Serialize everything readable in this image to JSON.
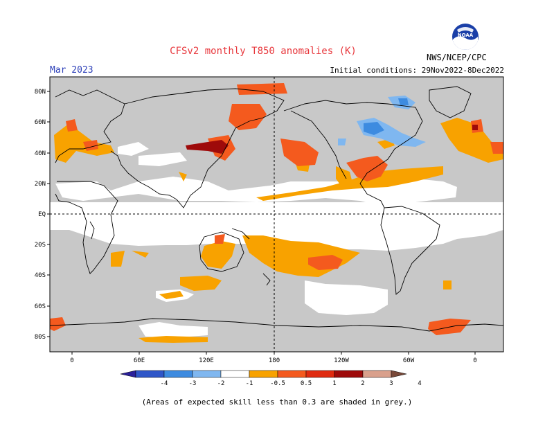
{
  "header": {
    "title": "CFSv2 monthly T850 anomalies (K)",
    "period": "Mar 2023",
    "initial_conditions": "Initial conditions: 29Nov2022-8Dec2022",
    "agency": "NWS/NCEP/CPC",
    "logo_text": "NOAA"
  },
  "map": {
    "lat_labels": [
      "80N",
      "60N",
      "40N",
      "20N",
      "EQ",
      "20S",
      "40S",
      "60S",
      "80S"
    ],
    "lon_labels": [
      "0",
      "60E",
      "120E",
      "180",
      "120W",
      "60W",
      "0"
    ],
    "skill_shading_color": "#c8c8c8"
  },
  "legend": {
    "labels": [
      "-4",
      "-3",
      "-2",
      "-1",
      "-0.5",
      "0.5",
      "1",
      "2",
      "3",
      "4"
    ],
    "colors": [
      "#2a1f9a",
      "#2f56c8",
      "#3d8be0",
      "#7fb7f0",
      "#ffffff",
      "#f8a200",
      "#f45a1e",
      "#e02b10",
      "#9e0a0a",
      "#d9a08c",
      "#7a4a3a"
    ]
  },
  "footnote": "(Areas of expected skill less than 0.3 are shaded in grey.)"
}
